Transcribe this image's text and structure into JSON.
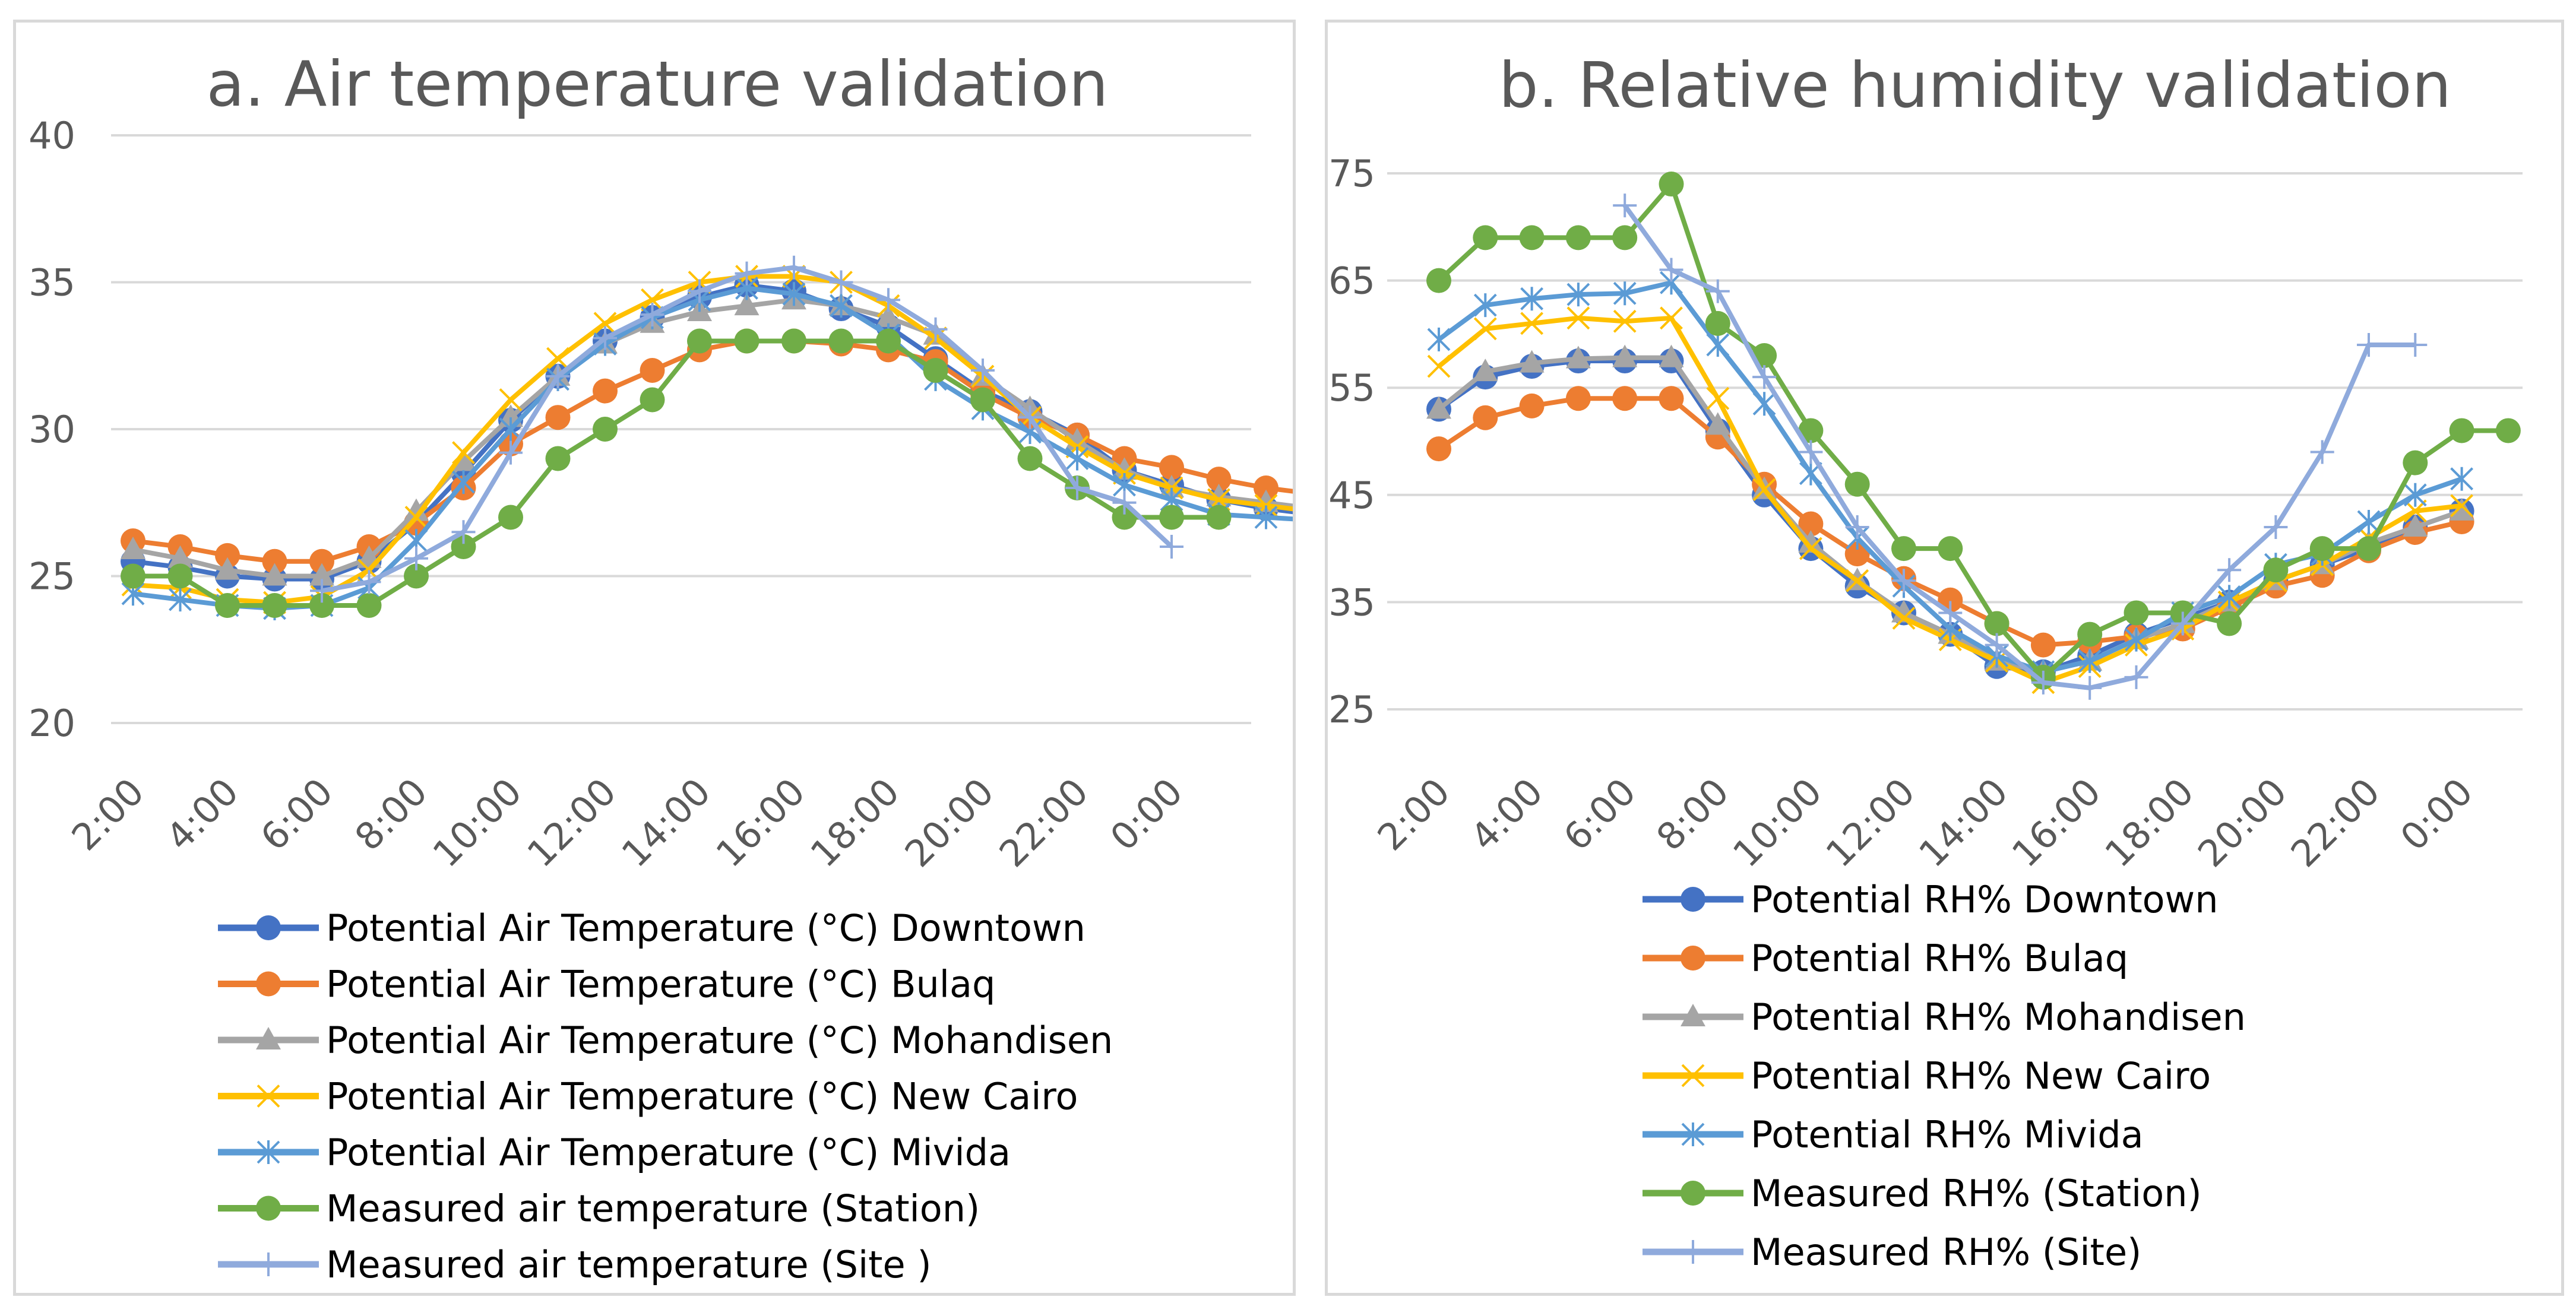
{
  "chart_data": [
    {
      "type": "line",
      "title": "a. Air temperature validation",
      "xlabel": "",
      "ylabel": "",
      "ylim": [
        20,
        40
      ],
      "yticks": [
        "40",
        "35",
        "30",
        "25",
        "20"
      ],
      "xtick_labels": [
        "2:00",
        "4:00",
        "6:00",
        "8:00",
        "10:00",
        "12:00",
        "14:00",
        "16:00",
        "18:00",
        "20:00",
        "22:00",
        "0:00"
      ],
      "legend_position": "bottom",
      "series": [
        {
          "name": "Potential Air Temperature  (°C) Downtown",
          "color": "#4472C4",
          "marker": "circle",
          "values": [
            25.5,
            25.3,
            25.0,
            24.9,
            24.9,
            25.5,
            26.8,
            28.5,
            30.3,
            31.8,
            33.0,
            33.8,
            34.5,
            34.9,
            34.7,
            34.1,
            33.5,
            32.4,
            31.3,
            30.6,
            29.8,
            28.6,
            28.1,
            27.6,
            27.3,
            27.1
          ]
        },
        {
          "name": "Potential Air Temperature  (°C) Bulaq",
          "color": "#ED7D31",
          "marker": "circle",
          "values": [
            26.2,
            26.0,
            25.7,
            25.5,
            25.5,
            26.0,
            26.8,
            28.0,
            29.5,
            30.4,
            31.3,
            32.0,
            32.7,
            33.0,
            33.0,
            32.9,
            32.7,
            32.3,
            31.2,
            30.4,
            29.8,
            29.0,
            28.7,
            28.3,
            28.0,
            27.8
          ]
        },
        {
          "name": "Potential Air Temperature  (°C) Mohandisen",
          "color": "#A5A5A5",
          "marker": "triangle",
          "values": [
            25.9,
            25.6,
            25.2,
            25.0,
            25.0,
            25.6,
            27.2,
            28.9,
            30.4,
            31.8,
            32.9,
            33.6,
            34.0,
            34.2,
            34.4,
            34.2,
            33.8,
            33.2,
            31.8,
            30.7,
            29.6,
            28.6,
            28.0,
            27.7,
            27.5,
            27.3
          ]
        },
        {
          "name": "Potential Air Temperature  (°C) New Cairo",
          "color": "#FFC000",
          "marker": "x",
          "values": [
            24.7,
            24.6,
            24.2,
            24.1,
            24.3,
            25.2,
            27.0,
            29.2,
            31.0,
            32.4,
            33.6,
            34.4,
            35.0,
            35.2,
            35.2,
            35.0,
            34.2,
            33.1,
            31.8,
            30.4,
            29.4,
            28.5,
            28.0,
            27.6,
            27.4,
            27.2
          ]
        },
        {
          "name": "Potential Air Temperature  (°C) Mivida",
          "color": "#5B9BD5",
          "marker": "asterisk",
          "values": [
            24.4,
            24.2,
            24.0,
            23.9,
            24.0,
            24.6,
            26.2,
            28.2,
            30.0,
            31.7,
            32.9,
            33.8,
            34.4,
            34.8,
            34.6,
            34.2,
            33.2,
            31.7,
            30.7,
            29.9,
            29.0,
            28.1,
            27.6,
            27.1,
            27.0,
            26.9
          ]
        },
        {
          "name": "Measured air temperature (Station)",
          "color": "#70AD47",
          "marker": "circle",
          "values": [
            25.0,
            25.0,
            24.0,
            24.0,
            24.0,
            24.0,
            25.0,
            26.0,
            27.0,
            29.0,
            30.0,
            31.0,
            33.0,
            33.0,
            33.0,
            33.0,
            33.0,
            32.0,
            31.0,
            29.0,
            28.0,
            27.0,
            27.0,
            27.0,
            null,
            null
          ]
        },
        {
          "name": "Measured air temperature (Site )",
          "color": "#8FAADC",
          "marker": "plus",
          "values": [
            null,
            null,
            null,
            null,
            24.5,
            24.8,
            25.6,
            26.5,
            29.2,
            31.8,
            33.1,
            33.9,
            34.7,
            35.3,
            35.5,
            35.0,
            34.4,
            33.4,
            32.0,
            30.4,
            28.0,
            27.5,
            26.0,
            null,
            null,
            null
          ]
        }
      ]
    },
    {
      "type": "line",
      "title": "b. Relative humidity validation",
      "xlabel": "",
      "ylabel": "",
      "ylim": [
        25,
        75
      ],
      "yticks": [
        "75",
        "65",
        "55",
        "45",
        "35",
        "25"
      ],
      "xtick_labels": [
        "2:00",
        "4:00",
        "6:00",
        "8:00",
        "10:00",
        "12:00",
        "14:00",
        "16:00",
        "18:00",
        "20:00",
        "22:00",
        "0:00"
      ],
      "legend_position": "bottom",
      "series": [
        {
          "name": "Potential RH% Downtown",
          "color": "#4472C4",
          "marker": "circle",
          "values": [
            53,
            56,
            57,
            57.5,
            57.5,
            57.5,
            51,
            45,
            40,
            36.5,
            34,
            32,
            29,
            28.5,
            30,
            32,
            33.5,
            35,
            37,
            38.5,
            40,
            42,
            43.5,
            null
          ]
        },
        {
          "name": "Potential RH% Bulaq",
          "color": "#ED7D31",
          "marker": "circle",
          "values": [
            49.3,
            52.2,
            53.3,
            54,
            54,
            54,
            50.4,
            46,
            42.3,
            39.5,
            37.2,
            35.2,
            33,
            31,
            31.3,
            31.8,
            32.5,
            34.5,
            36.5,
            37.5,
            39.8,
            41.5,
            42.5,
            null
          ]
        },
        {
          "name": "Potential RH% Mohandisen",
          "color": "#A5A5A5",
          "marker": "triangle",
          "values": [
            53,
            56.5,
            57.3,
            57.7,
            57.8,
            57.8,
            51.5,
            45.5,
            40.5,
            37,
            34,
            32,
            29.5,
            28.5,
            29.5,
            31.5,
            33,
            35,
            37,
            38.5,
            40.5,
            42,
            43.5,
            null
          ]
        },
        {
          "name": "Potential RH% New Cairo",
          "color": "#FFC000",
          "marker": "x",
          "values": [
            57,
            60.5,
            61,
            61.5,
            61.2,
            61.5,
            54,
            45.5,
            40,
            37,
            33.5,
            31.5,
            29.5,
            27.5,
            29,
            31,
            32.5,
            35,
            37,
            38.5,
            41,
            43.5,
            44,
            null
          ]
        },
        {
          "name": "Potential RH% Mivida",
          "color": "#5B9BD5",
          "marker": "asterisk",
          "values": [
            59.5,
            62.7,
            63.3,
            63.7,
            63.8,
            64.8,
            59,
            53.5,
            47,
            41,
            36.5,
            32.5,
            30,
            28.5,
            29.5,
            31.5,
            34,
            35.5,
            38.5,
            39.5,
            42.5,
            45,
            46.5,
            null
          ]
        },
        {
          "name": "Measured RH% (Station)",
          "color": "#70AD47",
          "marker": "circle",
          "values": [
            65,
            69,
            69,
            69,
            69,
            74,
            61,
            58,
            51,
            46,
            40,
            40,
            33,
            28,
            32,
            34,
            34,
            33,
            38,
            40,
            40,
            48,
            51,
            51
          ]
        },
        {
          "name": "Measured RH% (Site)",
          "color": "#8FAADC",
          "marker": "plus",
          "values": [
            null,
            null,
            null,
            null,
            72,
            66,
            64,
            56,
            49,
            42,
            37,
            34,
            31,
            27.5,
            27,
            28,
            33,
            38,
            42,
            49,
            59,
            59,
            null,
            null
          ]
        }
      ]
    }
  ]
}
